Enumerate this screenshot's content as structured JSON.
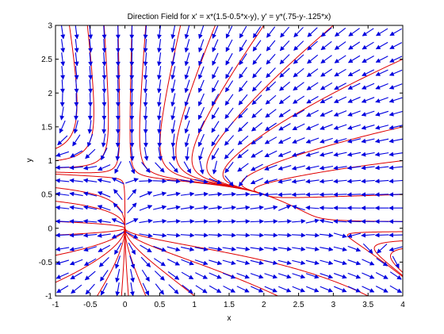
{
  "chart_data": {
    "type": "direction-field",
    "title": "Direction Field for x' = x*(1.5-0.5*x-y), y' = y*(.75-y-.125*x)",
    "xlabel": "x",
    "ylabel": "y",
    "xlim": [
      -1,
      4
    ],
    "ylim": [
      -1,
      3
    ],
    "x_ticks": [
      -1,
      -0.5,
      0,
      0.5,
      1,
      1.5,
      2,
      2.5,
      3,
      3.5,
      4
    ],
    "y_ticks": [
      -1,
      -0.5,
      0,
      0.5,
      1,
      1.5,
      2,
      2.5,
      3
    ],
    "x_tick_labels": [
      "-1",
      "-0.5",
      "0",
      "0.5",
      "1",
      "1.5",
      "2",
      "2.5",
      "3",
      "3.5",
      "4"
    ],
    "y_tick_labels": [
      "-1",
      "-0.5",
      "0",
      "0.5",
      "1",
      "1.5",
      "2",
      "2.5",
      "3"
    ],
    "system": {
      "dx": "x*(1.5-0.5*x-y)",
      "dy": "y*(.75-y-.125*x)"
    },
    "arrow_grid": {
      "x_start": -0.9,
      "x_step": 0.2,
      "y_start": -0.9,
      "y_step": 0.2
    },
    "grid": false,
    "colors": {
      "arrows": "#0000e0",
      "trajectories": "#e00000",
      "axes": "#000000"
    },
    "trajectory_seeds": [
      [
        -1,
        0.8
      ],
      [
        -1,
        1.0
      ],
      [
        -1,
        0.6
      ],
      [
        -1,
        0.4
      ],
      [
        -1,
        0.1
      ],
      [
        -1,
        -0.1
      ],
      [
        -1,
        -0.4
      ],
      [
        -1,
        -0.8
      ],
      [
        -0.8,
        3
      ],
      [
        -0.3,
        3
      ],
      [
        -0.1,
        3
      ],
      [
        0.1,
        3
      ],
      [
        0.3,
        3
      ],
      [
        0.8,
        3
      ],
      [
        1.3,
        3
      ],
      [
        2.0,
        3
      ],
      [
        3.0,
        3
      ],
      [
        4,
        2.5
      ],
      [
        4,
        1.5
      ],
      [
        4,
        1.0
      ],
      [
        4,
        0.5
      ],
      [
        4,
        0.1
      ],
      [
        4,
        -0.05
      ],
      [
        4,
        -0.3
      ],
      [
        4,
        -0.7
      ],
      [
        3.5,
        -1
      ],
      [
        2.2,
        -1
      ],
      [
        1.0,
        -1
      ],
      [
        0.3,
        -1
      ],
      [
        0.05,
        -1
      ],
      [
        -0.05,
        -1
      ],
      [
        -0.4,
        -1
      ]
    ]
  }
}
